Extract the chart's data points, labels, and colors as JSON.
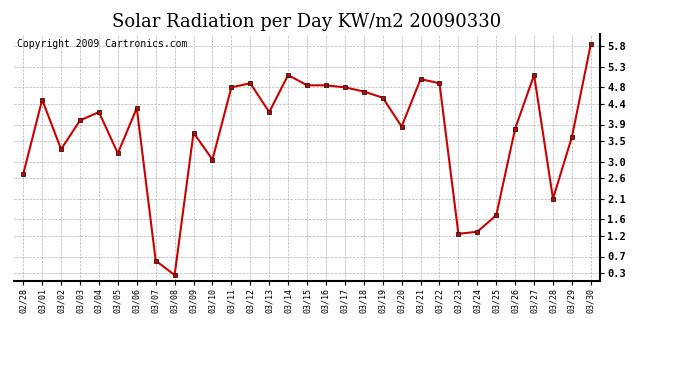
{
  "title": "Solar Radiation per Day KW/m2 20090330",
  "copyright": "Copyright 2009 Cartronics.com",
  "dates": [
    "02/28",
    "03/01",
    "03/02",
    "03/03",
    "03/04",
    "03/05",
    "03/06",
    "03/07",
    "03/08",
    "03/09",
    "03/10",
    "03/11",
    "03/12",
    "03/13",
    "03/14",
    "03/15",
    "03/16",
    "03/17",
    "03/18",
    "03/19",
    "03/20",
    "03/21",
    "03/22",
    "03/23",
    "03/24",
    "03/25",
    "03/26",
    "03/27",
    "03/28",
    "03/29",
    "03/30"
  ],
  "values": [
    2.7,
    4.5,
    3.3,
    4.0,
    4.2,
    3.2,
    4.3,
    0.6,
    0.25,
    3.7,
    3.05,
    4.8,
    4.9,
    4.2,
    5.1,
    4.85,
    4.85,
    4.8,
    4.7,
    4.55,
    3.85,
    5.0,
    4.9,
    1.25,
    1.3,
    1.7,
    3.8,
    5.1,
    2.1,
    3.6,
    5.85
  ],
  "yticks": [
    0.3,
    0.7,
    1.2,
    1.6,
    2.1,
    2.6,
    3.0,
    3.5,
    3.9,
    4.4,
    4.8,
    5.3,
    5.8
  ],
  "ylim": [
    0.1,
    6.1
  ],
  "line_color": "#cc0000",
  "marker": "s",
  "marker_size": 2.5,
  "bg_color": "#ffffff",
  "grid_color": "#aaaaaa",
  "title_fontsize": 13,
  "copyright_fontsize": 7
}
